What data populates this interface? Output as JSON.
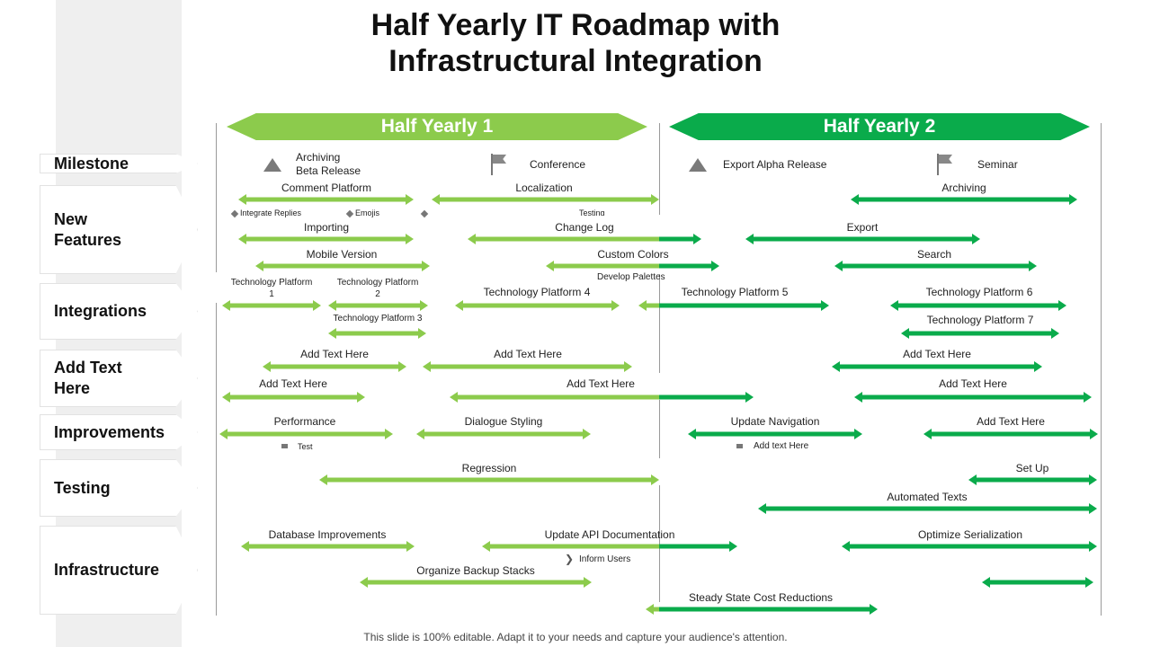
{
  "title": [
    "Half Yearly IT Roadmap with",
    "Infrastructural Integration"
  ],
  "headers": [
    "Half Yearly 1",
    "Half Yearly 2"
  ],
  "colors": {
    "light_green": "#8ccb4c",
    "dark_green": "#0aab4b",
    "icon_gray": "#7a7a7a"
  },
  "categories": [
    "Milestone",
    "New\nFeatures",
    "Integrations",
    "Add Text\nHere",
    "Improvements",
    "Testing",
    "Infrastructure"
  ],
  "milestones": [
    {
      "icon": "triangle-icon",
      "label": "Archiving\nBeta Release"
    },
    {
      "icon": "flag-icon",
      "label": "Conference"
    },
    {
      "icon": "triangle-icon",
      "label": "Export Alpha Release"
    },
    {
      "icon": "flag-icon",
      "label": "Seminar"
    }
  ],
  "bar_labels": [
    "Comment Platform",
    "Localization",
    "Archiving",
    "Importing",
    "Change Log",
    "Export",
    "Mobile Version",
    "Custom Colors",
    "Search",
    "Technology Platform\n1",
    "Technology Platform\n2",
    "Technology Platform 4",
    "Technology Platform 5",
    "Technology Platform 6",
    "Technology Platform 3",
    "Technology Platform 7",
    "Add Text Here",
    "Add Text Here",
    "Add Text Here",
    "Add Text Here",
    "Add Text Here",
    "Add Text Here",
    "Performance",
    "Dialogue Styling",
    "Update Navigation",
    "Add Text Here",
    "Regression",
    "Set Up",
    "Automated Texts",
    "Database Improvements",
    "Update API Documentation",
    "Optimize Serialization",
    "Organize Backup Stacks",
    "Steady State Cost Reductions"
  ],
  "sub_labels": [
    "Integrate Replies",
    "Emojis",
    "Testing",
    "Develop Palettes",
    "Test",
    "Add text Here",
    "Inform Users"
  ],
  "footer": "This slide is 100% editable. Adapt it to your needs and capture your audience's attention."
}
